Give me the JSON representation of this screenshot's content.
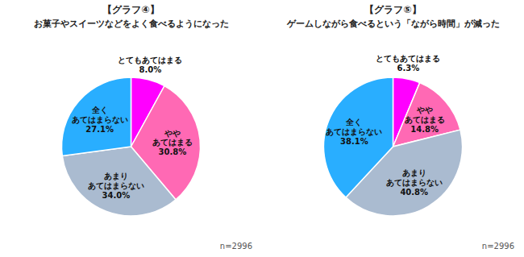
{
  "chart_data": [
    {
      "type": "pie",
      "title": "【グラフ④】",
      "subtitle": "お菓子やスイーツなどをよく食べるようになった",
      "categories": [
        "とてもあてはまる",
        "やや\nあてはまる",
        "あまり\nあてはまらない",
        "全く\nあてはまらない"
      ],
      "values": [
        8.0,
        30.8,
        34.0,
        27.1
      ],
      "value_labels": [
        "8.0%",
        "30.8%",
        "34.0%",
        "27.1%"
      ],
      "colors": [
        "#FF00FF",
        "#FF69B4",
        "#AABBD0",
        "#29AEFF"
      ],
      "data_labels": true,
      "annotations": [
        "n=2996"
      ]
    },
    {
      "type": "pie",
      "title": "【グラフ⑤】",
      "subtitle": "ゲームしながら食べるという「ながら時間」が減った",
      "categories": [
        "とてもあてはまる",
        "やや\nあてはまる",
        "あまり\nあてはまらない",
        "全く\nあてはまらない"
      ],
      "values": [
        6.3,
        14.8,
        40.8,
        38.1
      ],
      "value_labels": [
        "6.3%",
        "14.8%",
        "40.8%",
        "38.1%"
      ],
      "colors": [
        "#FF00FF",
        "#FF69B4",
        "#AABBD0",
        "#29AEFF"
      ],
      "data_labels": true,
      "annotations": [
        "n=2996"
      ]
    }
  ]
}
